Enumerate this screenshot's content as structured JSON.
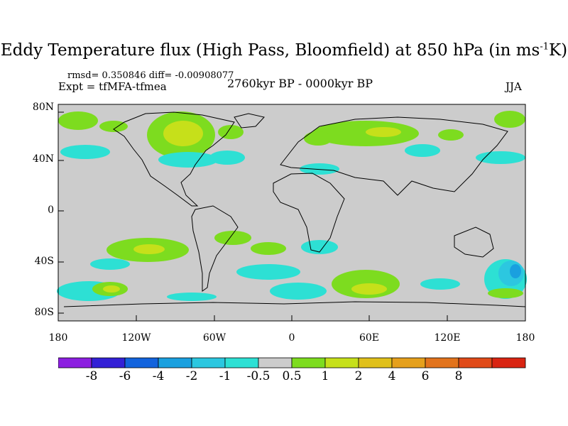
{
  "title": {
    "main": "Eddy Temperature flux (High Pass, Bloomfield) at 850 hPa (in ms",
    "sup": "-1",
    "end": "K)"
  },
  "stats": "rmsd= 0.350846 diff= -0.00908077",
  "experiment": "Expt = tfMFA-tfmea",
  "period": "2760kyr BP - 0000kyr BP",
  "season": "JJA",
  "lat_ticks": [
    "80N",
    "40N",
    "0",
    "40S",
    "80S"
  ],
  "lon_ticks": [
    "180",
    "120W",
    "60W",
    "0",
    "60E",
    "120E",
    "180"
  ],
  "colorbar": {
    "colors": [
      "#8c1fe0",
      "#3320d6",
      "#1263dd",
      "#1aa0df",
      "#2cc7e0",
      "#2de0d4",
      "#cccccc",
      "#7ddc1f",
      "#c6e01a",
      "#e0c01a",
      "#e5a01c",
      "#e2731c",
      "#e04a18",
      "#d92412"
    ],
    "labels": [
      "-8",
      "-6",
      "-4",
      "-2",
      "-1",
      "-0.5",
      "0.5",
      "1",
      "2",
      "4",
      "6",
      "8"
    ]
  },
  "colors": {
    "background": "#cccccc",
    "positive_low": "#7ddc1f",
    "positive_mid": "#c6e01a",
    "negative_low": "#2de0d4",
    "negative_mid": "#2cc7e0",
    "negative_high": "#1aa0df"
  }
}
